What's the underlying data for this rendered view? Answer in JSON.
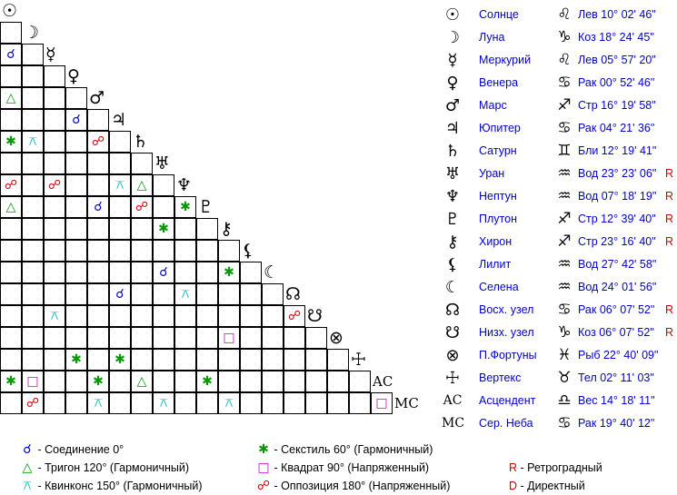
{
  "planets": [
    {
      "key": "sun",
      "glyph": "☉",
      "name": "Солнце",
      "sign_glyph": "♌",
      "pos": "Лев 10° 02' 46\"",
      "r": ""
    },
    {
      "key": "moon",
      "glyph": "☽",
      "name": "Луна",
      "sign_glyph": "♑",
      "pos": "Коз 18° 24' 45\"",
      "r": ""
    },
    {
      "key": "mercury",
      "glyph": "☿",
      "name": "Меркурий",
      "sign_glyph": "♌",
      "pos": "Лев 05° 57' 20\"",
      "r": ""
    },
    {
      "key": "venus",
      "glyph": "♀",
      "name": "Венера",
      "sign_glyph": "♋",
      "pos": "Рак 00° 52' 46\"",
      "r": ""
    },
    {
      "key": "mars",
      "glyph": "♂",
      "name": "Марс",
      "sign_glyph": "♐",
      "pos": "Стр 16° 19' 58\"",
      "r": ""
    },
    {
      "key": "jupiter",
      "glyph": "♃",
      "name": "Юпитер",
      "sign_glyph": "♋",
      "pos": "Рак 04° 21' 36\"",
      "r": ""
    },
    {
      "key": "saturn",
      "glyph": "♄",
      "name": "Сатурн",
      "sign_glyph": "♊",
      "pos": "Бли 12° 19' 41\"",
      "r": ""
    },
    {
      "key": "uranus",
      "glyph": "♅",
      "name": "Уран",
      "sign_glyph": "♒",
      "pos": "Вод 23° 23' 06\"",
      "r": "R"
    },
    {
      "key": "neptune",
      "glyph": "♆",
      "name": "Нептун",
      "sign_glyph": "♒",
      "pos": "Вод 07° 18' 19\"",
      "r": "R"
    },
    {
      "key": "pluto",
      "glyph": "♇",
      "name": "Плутон",
      "sign_glyph": "♐",
      "pos": "Стр 12° 39' 40\"",
      "r": "R"
    },
    {
      "key": "chiron",
      "glyph": "⚷",
      "name": "Хирон",
      "sign_glyph": "♐",
      "pos": "Стр 23° 16' 40\"",
      "r": "R"
    },
    {
      "key": "lilith",
      "glyph": "⚸",
      "name": "Лилит",
      "sign_glyph": "♒",
      "pos": "Вод 27° 42' 58\"",
      "r": ""
    },
    {
      "key": "selena",
      "glyph": "☾",
      "name": "Селена",
      "sign_glyph": "♒",
      "pos": "Вод 24° 01' 56\"",
      "r": ""
    },
    {
      "key": "north_node",
      "glyph": "☊",
      "name": "Восх. узел",
      "sign_glyph": "♋",
      "pos": "Рак 06° 07' 52\"",
      "r": "R"
    },
    {
      "key": "south_node",
      "glyph": "☋",
      "name": "Низх. узел",
      "sign_glyph": "♑",
      "pos": "Коз 06° 07' 52\"",
      "r": "R"
    },
    {
      "key": "fortune",
      "glyph": "⊗",
      "name": "П.Фортуны",
      "sign_glyph": "♓",
      "pos": "Рыб 22° 40' 09\"",
      "r": ""
    },
    {
      "key": "vertex",
      "glyph": "☩",
      "name": "Вертекс",
      "sign_glyph": "♉",
      "pos": "Тел 02° 11' 03\"",
      "r": ""
    },
    {
      "key": "asc",
      "glyph": "AC",
      "name": "Асцендент",
      "sign_glyph": "♎",
      "pos": "Вес 14° 18' 11\"",
      "r": ""
    },
    {
      "key": "mc",
      "glyph": "MC",
      "name": "Сер. Неба",
      "sign_glyph": "♋",
      "pos": "Рак 19° 40' 12\"",
      "r": ""
    }
  ],
  "aspect_types": {
    "conj": {
      "glyph": "☌",
      "color": "#0000cc",
      "label": "- Соединение 0°"
    },
    "trine": {
      "glyph": "△",
      "color": "#009900",
      "label": "- Тригон 120° (Гармоничный)"
    },
    "quinc": {
      "glyph": "⚻",
      "color": "#00bbbb",
      "label": "- Квинконс 150° (Гармоничный)"
    },
    "sext": {
      "glyph": "✱",
      "color": "#009900",
      "label": "- Секстиль 60° (Гармоничный)"
    },
    "square": {
      "glyph": "□",
      "color": "#cc00cc",
      "label": "- Квадрат 90° (Напряженный)"
    },
    "opp": {
      "glyph": "☍",
      "color": "#cc0000",
      "label": "- Оппозиция 180° (Напряженный)"
    }
  },
  "aspects": [
    {
      "row": 2,
      "col": 0,
      "type": "conj"
    },
    {
      "row": 4,
      "col": 0,
      "type": "trine"
    },
    {
      "row": 5,
      "col": 3,
      "type": "conj"
    },
    {
      "row": 6,
      "col": 0,
      "type": "sext"
    },
    {
      "row": 6,
      "col": 1,
      "type": "quinc"
    },
    {
      "row": 6,
      "col": 4,
      "type": "opp"
    },
    {
      "row": 8,
      "col": 0,
      "type": "opp"
    },
    {
      "row": 8,
      "col": 2,
      "type": "opp"
    },
    {
      "row": 8,
      "col": 5,
      "type": "quinc"
    },
    {
      "row": 8,
      "col": 6,
      "type": "trine"
    },
    {
      "row": 9,
      "col": 0,
      "type": "trine"
    },
    {
      "row": 9,
      "col": 4,
      "type": "conj"
    },
    {
      "row": 9,
      "col": 6,
      "type": "opp"
    },
    {
      "row": 9,
      "col": 8,
      "type": "sext"
    },
    {
      "row": 10,
      "col": 7,
      "type": "sext"
    },
    {
      "row": 12,
      "col": 7,
      "type": "conj"
    },
    {
      "row": 12,
      "col": 10,
      "type": "sext"
    },
    {
      "row": 13,
      "col": 5,
      "type": "conj"
    },
    {
      "row": 13,
      "col": 8,
      "type": "quinc"
    },
    {
      "row": 14,
      "col": 2,
      "type": "quinc"
    },
    {
      "row": 14,
      "col": 13,
      "type": "opp"
    },
    {
      "row": 15,
      "col": 10,
      "type": "square"
    },
    {
      "row": 16,
      "col": 3,
      "type": "sext"
    },
    {
      "row": 16,
      "col": 5,
      "type": "sext"
    },
    {
      "row": 17,
      "col": 0,
      "type": "sext"
    },
    {
      "row": 17,
      "col": 1,
      "type": "square"
    },
    {
      "row": 17,
      "col": 4,
      "type": "sext"
    },
    {
      "row": 17,
      "col": 6,
      "type": "trine"
    },
    {
      "row": 17,
      "col": 9,
      "type": "sext"
    },
    {
      "row": 18,
      "col": 1,
      "type": "opp"
    },
    {
      "row": 18,
      "col": 4,
      "type": "quinc"
    },
    {
      "row": 18,
      "col": 7,
      "type": "quinc"
    },
    {
      "row": 18,
      "col": 10,
      "type": "quinc"
    },
    {
      "row": 18,
      "col": 17,
      "type": "square"
    }
  ],
  "legend": {
    "retro": {
      "letter": "R",
      "label": "- Ретроградный"
    },
    "direct": {
      "letter": "D",
      "label": "- Директный"
    }
  },
  "colors": {
    "accent_blue": "#0000cc",
    "retro_red": "#cc0000"
  }
}
